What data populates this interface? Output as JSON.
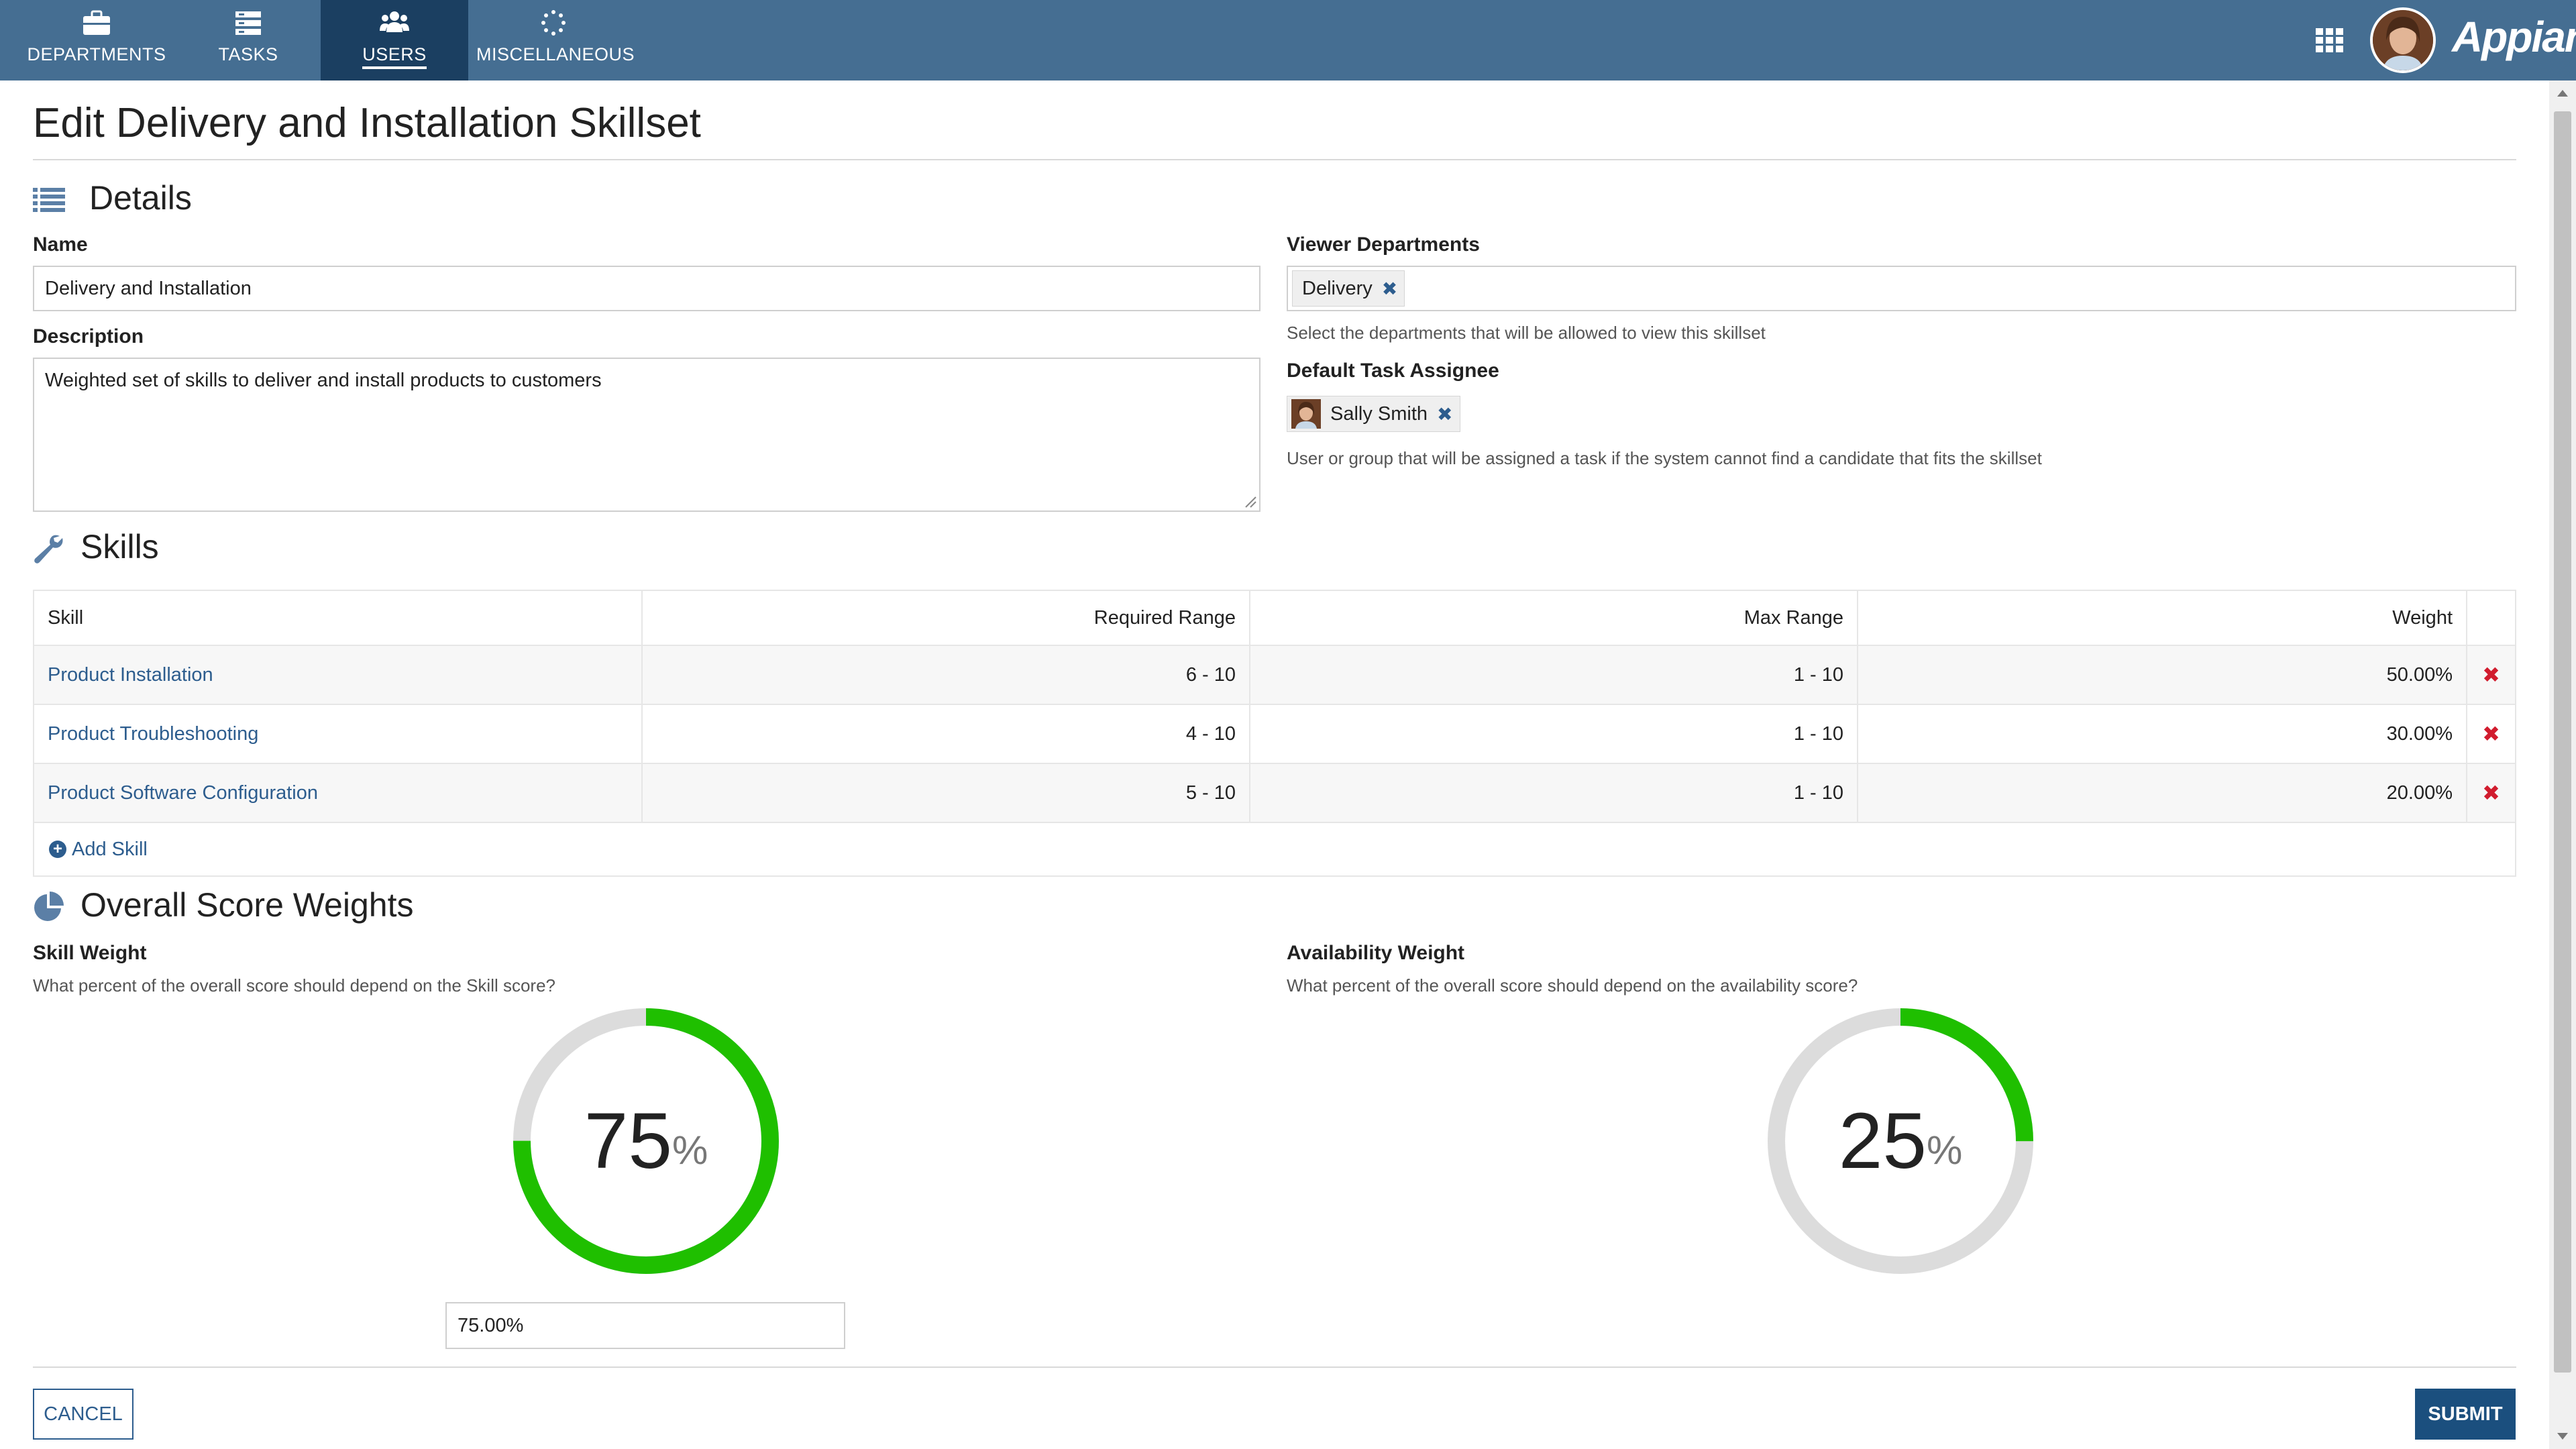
{
  "nav": {
    "tabs": [
      {
        "label": "DEPARTMENTS",
        "icon": "briefcase-icon"
      },
      {
        "label": "TASKS",
        "icon": "tasks-icon"
      },
      {
        "label": "USERS",
        "icon": "users-icon",
        "active": true
      },
      {
        "label": "MISCELLANEOUS",
        "icon": "spinner-icon"
      }
    ],
    "logo": "Appian",
    "color": "#456e92",
    "active_color": "#1b3f61"
  },
  "page": {
    "title": "Edit Delivery and Installation Skillset"
  },
  "details": {
    "title": "Details",
    "name_label": "Name",
    "name_value": "Delivery and Installation",
    "description_label": "Description",
    "description_value": "Weighted set of skills to deliver and install products to customers",
    "viewer_label": "Viewer Departments",
    "viewer_tag": "Delivery",
    "viewer_help": "Select the departments that will be allowed to view this skillset",
    "assignee_label": "Default Task Assignee",
    "assignee_tag": "Sally Smith",
    "assignee_help": "User or group that will be assigned a task if the system cannot find a candidate that fits the skillset"
  },
  "skills": {
    "title": "Skills",
    "columns": [
      "Skill",
      "Required Range",
      "Max Range",
      "Weight"
    ],
    "rows": [
      {
        "skill": "Product Installation",
        "required": "6 - 10",
        "max": "1 - 10",
        "weight": "50.00%"
      },
      {
        "skill": "Product Troubleshooting",
        "required": "4 - 10",
        "max": "1 - 10",
        "weight": "30.00%"
      },
      {
        "skill": "Product Software Configuration",
        "required": "5 - 10",
        "max": "1 - 10",
        "weight": "20.00%"
      }
    ],
    "add_label": "Add Skill",
    "delete_glyph": "✖"
  },
  "weights": {
    "title": "Overall Score Weights",
    "skill_label": "Skill Weight",
    "skill_help": "What percent of the overall score should depend on the Skill score?",
    "skill_value": "75",
    "skill_fraction": 0.75,
    "skill_input": "75.00%",
    "availability_label": "Availability Weight",
    "availability_help": "What percent of the overall score should depend on the availability score?",
    "availability_value": "25",
    "availability_fraction": 0.25,
    "pct_sign": "%",
    "accent": "#1fbf00",
    "track": "#dcdcdc"
  },
  "actions": {
    "cancel": "CANCEL",
    "submit": "SUBMIT"
  }
}
